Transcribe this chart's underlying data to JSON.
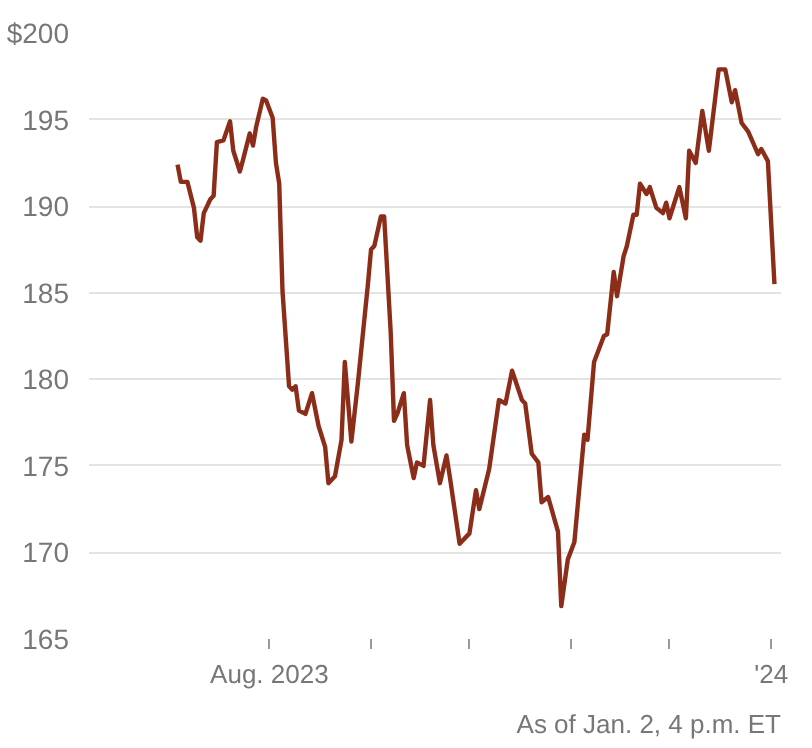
{
  "chart_data": {
    "type": "line",
    "series": [
      {
        "color": "#8c2d19",
        "x": [
          "2023-07-04",
          "2023-07-05",
          "2023-07-07",
          "2023-07-09",
          "2023-07-10",
          "2023-07-11",
          "2023-07-12",
          "2023-07-14",
          "2023-07-15",
          "2023-07-16",
          "2023-07-18",
          "2023-07-20",
          "2023-07-21",
          "2023-07-23",
          "2023-07-24",
          "2023-07-26",
          "2023-07-27",
          "2023-07-28",
          "2023-07-30",
          "2023-07-31",
          "2023-08-02",
          "2023-08-03",
          "2023-08-04",
          "2023-08-05",
          "2023-08-07",
          "2023-08-08",
          "2023-08-09",
          "2023-08-10",
          "2023-08-12",
          "2023-08-14",
          "2023-08-16",
          "2023-08-18",
          "2023-08-19",
          "2023-08-21",
          "2023-08-23",
          "2023-08-24",
          "2023-08-26",
          "2023-08-28",
          "2023-08-31",
          "2023-09-01",
          "2023-09-02",
          "2023-09-04",
          "2023-09-05",
          "2023-09-07",
          "2023-09-08",
          "2023-09-09",
          "2023-09-11",
          "2023-09-12",
          "2023-09-14",
          "2023-09-15",
          "2023-09-17",
          "2023-09-19",
          "2023-09-20",
          "2023-09-22",
          "2023-09-24",
          "2023-09-25",
          "2023-09-28",
          "2023-10-01",
          "2023-10-03",
          "2023-10-04",
          "2023-10-07",
          "2023-10-10",
          "2023-10-12",
          "2023-10-14",
          "2023-10-17",
          "2023-10-18",
          "2023-10-20",
          "2023-10-22",
          "2023-10-23",
          "2023-10-25",
          "2023-10-28",
          "2023-10-29",
          "2023-10-31",
          "2023-11-02",
          "2023-11-05",
          "2023-11-06",
          "2023-11-08",
          "2023-11-11",
          "2023-11-12",
          "2023-11-14",
          "2023-11-15",
          "2023-11-17",
          "2023-11-18",
          "2023-11-20",
          "2023-11-21",
          "2023-11-22",
          "2023-11-24",
          "2023-11-25",
          "2023-11-27",
          "2023-11-29",
          "2023-11-30",
          "2023-12-01",
          "2023-12-04",
          "2023-12-06",
          "2023-12-07",
          "2023-12-09",
          "2023-12-11",
          "2023-12-13",
          "2023-12-16",
          "2023-12-18",
          "2023-12-20",
          "2023-12-21",
          "2023-12-23",
          "2023-12-25",
          "2023-12-28",
          "2023-12-29",
          "2023-12-31",
          "2024-01-02"
        ],
        "values": [
          192.4,
          191.4,
          191.4,
          189.9,
          188.2,
          188.0,
          189.6,
          190.4,
          190.6,
          193.7,
          193.8,
          194.9,
          193.2,
          192.0,
          192.7,
          194.2,
          193.5,
          194.6,
          196.2,
          196.1,
          195.1,
          192.5,
          191.3,
          185.1,
          179.6,
          179.4,
          179.6,
          178.2,
          178.0,
          179.2,
          177.3,
          176.1,
          174.0,
          174.4,
          176.5,
          181.0,
          176.4,
          179.8,
          185.4,
          187.5,
          187.7,
          189.4,
          189.4,
          182.7,
          177.6,
          178.0,
          179.2,
          176.2,
          174.3,
          175.2,
          175.0,
          178.8,
          176.2,
          174.0,
          175.6,
          174.4,
          170.5,
          171.1,
          173.6,
          172.5,
          174.8,
          178.8,
          178.6,
          180.5,
          178.8,
          178.6,
          175.7,
          175.2,
          172.9,
          173.2,
          171.2,
          166.9,
          169.6,
          170.6,
          176.8,
          176.5,
          181.0,
          182.5,
          182.6,
          186.2,
          184.8,
          187.1,
          187.7,
          189.5,
          189.5,
          191.3,
          190.7,
          191.1,
          189.9,
          189.6,
          190.2,
          189.3,
          191.1,
          189.3,
          193.2,
          192.5,
          195.5,
          193.2,
          197.9,
          197.9,
          196.0,
          196.7,
          194.8,
          194.3,
          193.0,
          193.3,
          192.6,
          185.5
        ]
      }
    ],
    "xlim": [
      "2023-06-07",
      "2024-01-04"
    ],
    "xticks": [
      {
        "value": "2023-08-01",
        "label": "Aug. 2023"
      },
      {
        "value": "2023-09-01",
        "label": null
      },
      {
        "value": "2023-10-01",
        "label": null
      },
      {
        "value": "2023-11-01",
        "label": null
      },
      {
        "value": "2023-12-01",
        "label": null
      },
      {
        "value": "2024-01-01",
        "label": "'24"
      }
    ],
    "ylim": [
      165,
      200
    ],
    "yticks": [
      {
        "value": 200,
        "label": "$200"
      },
      195,
      190,
      185,
      180,
      175,
      170,
      165
    ],
    "grid": "y",
    "annotations": [
      "As of Jan. 2, 4 p.m. ET"
    ]
  }
}
